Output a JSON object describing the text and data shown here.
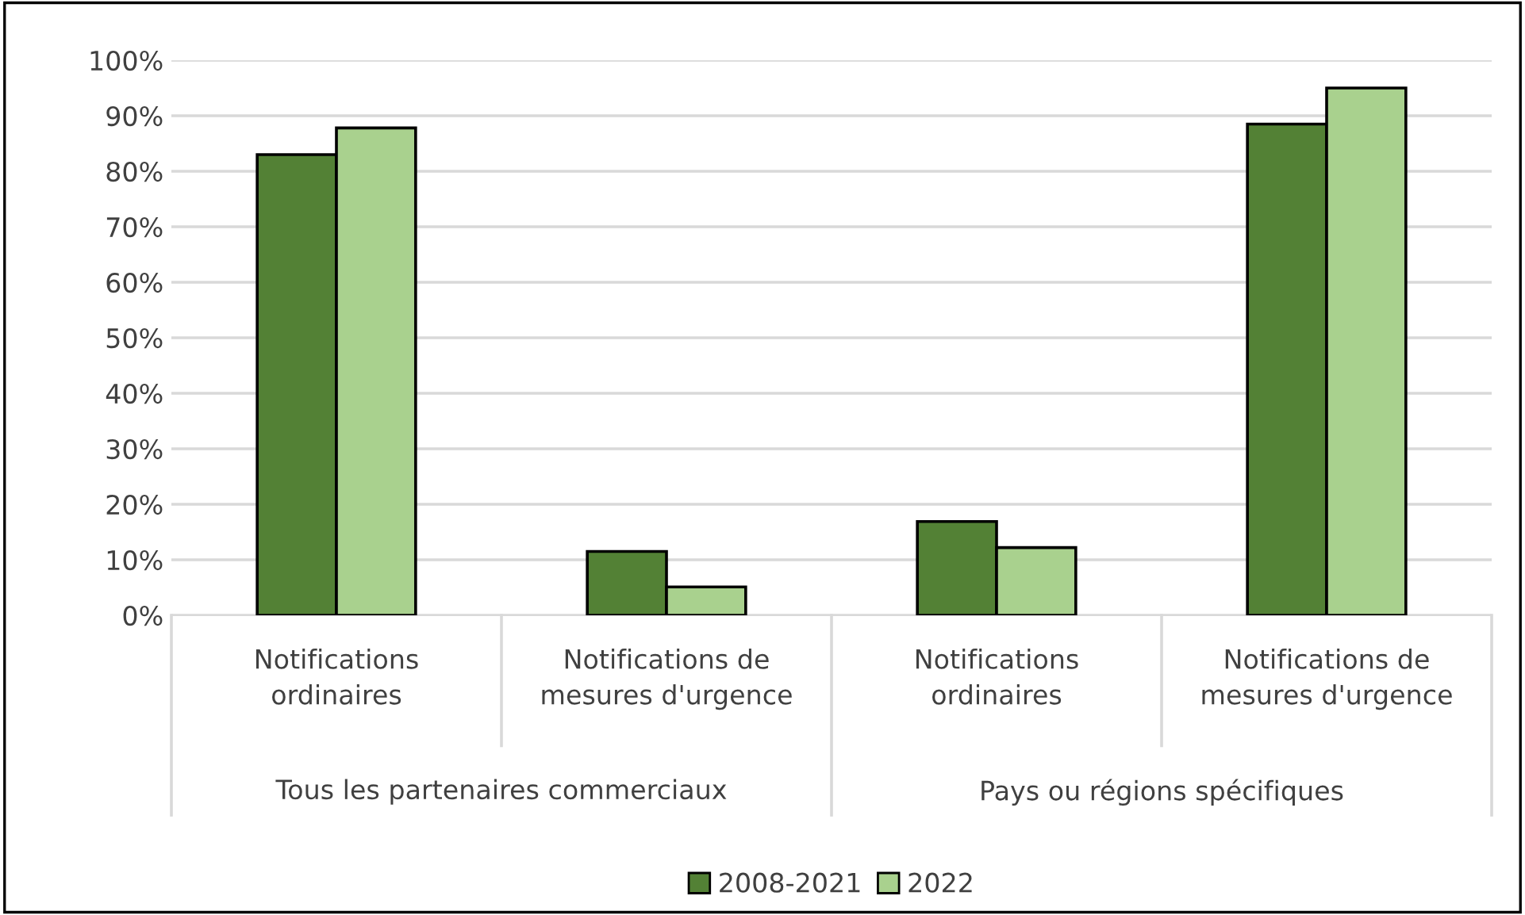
{
  "chart_data": {
    "type": "bar",
    "categories": [
      "Notifications\nordinaires",
      "Notifications de\nmesures d'urgence",
      "Notifications\nordinaires",
      "Notifications de\nmesures d'urgence"
    ],
    "series": [
      {
        "name": "2008-2021",
        "color": "#538135",
        "values": [
          83.0,
          11.5,
          16.9,
          88.5
        ]
      },
      {
        "name": "2022",
        "color": "#a9d18e",
        "values": [
          87.8,
          5.1,
          12.2,
          95.0
        ]
      }
    ],
    "annotations": [
      "Tous les partenaires commerciaux",
      "Pays ou régions spécifiques"
    ],
    "ylim": [
      0,
      100
    ],
    "yticks": [
      {
        "value": 0,
        "label": "0%"
      },
      {
        "value": 10,
        "label": "10%"
      },
      {
        "value": 20,
        "label": "20%"
      },
      {
        "value": 30,
        "label": "30%"
      },
      {
        "value": 40,
        "label": "40%"
      },
      {
        "value": 50,
        "label": "50%"
      },
      {
        "value": 60,
        "label": "60%"
      },
      {
        "value": 70,
        "label": "70%"
      },
      {
        "value": 80,
        "label": "80%"
      },
      {
        "value": 90,
        "label": "90%"
      },
      {
        "value": 100,
        "label": "100%"
      }
    ],
    "grid": "y",
    "legend": "bottom"
  }
}
